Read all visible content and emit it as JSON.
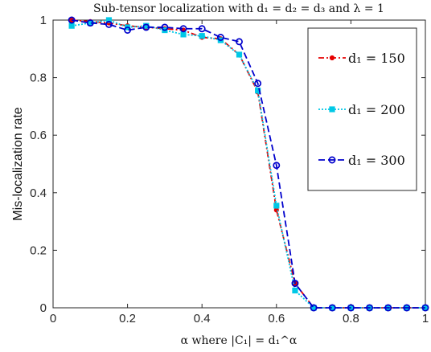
{
  "chart_data": {
    "type": "line",
    "title": "Sub-tensor localization with d₁ = d₂ = d₃ and λ = 1",
    "xlabel": "α where |C₁| = d₁^α",
    "ylabel": "Mis-localization rate",
    "xlim": [
      0,
      1
    ],
    "ylim": [
      0,
      1
    ],
    "xticks": [
      0,
      0.2,
      0.4,
      0.6,
      0.8,
      1
    ],
    "yticks": [
      0,
      0.2,
      0.4,
      0.6,
      0.8,
      1
    ],
    "xtick_labels": [
      "0",
      "0.2",
      "0.4",
      "0.6",
      "0.8",
      "1"
    ],
    "ytick_labels": [
      "0",
      "0.2",
      "0.4",
      "0.6",
      "0.8",
      "1"
    ],
    "grid": false,
    "legend_position": "top-right",
    "x": [
      0.05,
      0.1,
      0.15,
      0.2,
      0.25,
      0.3,
      0.35,
      0.4,
      0.45,
      0.5,
      0.55,
      0.6,
      0.65,
      0.7,
      0.75,
      0.8,
      0.85,
      0.9,
      0.95,
      1.0
    ],
    "series": [
      {
        "name": "d₁ = 150",
        "color": "#e60000",
        "line_style": "dash-dot",
        "marker": "filled-dot",
        "values": [
          1.0,
          0.995,
          0.99,
          0.98,
          0.975,
          0.97,
          0.965,
          0.94,
          0.935,
          0.88,
          0.75,
          0.34,
          0.085,
          0.0,
          0.0,
          0.0,
          0.0,
          0.0,
          0.0,
          0.0
        ]
      },
      {
        "name": "d₁ = 200",
        "color": "#00c8e6",
        "line_style": "dotted",
        "marker": "square",
        "values": [
          0.98,
          0.99,
          1.0,
          0.975,
          0.98,
          0.965,
          0.95,
          0.945,
          0.93,
          0.88,
          0.755,
          0.355,
          0.06,
          0.0,
          0.0,
          0.0,
          0.0,
          0.0,
          0.0,
          0.0
        ]
      },
      {
        "name": "d₁ = 300",
        "color": "#0000cc",
        "line_style": "dashed",
        "marker": "hollow-circle",
        "values": [
          1.0,
          0.99,
          0.985,
          0.965,
          0.975,
          0.975,
          0.97,
          0.97,
          0.94,
          0.925,
          0.78,
          0.495,
          0.085,
          0.0,
          0.0,
          0.0,
          0.0,
          0.0,
          0.0,
          0.0
        ]
      }
    ]
  }
}
